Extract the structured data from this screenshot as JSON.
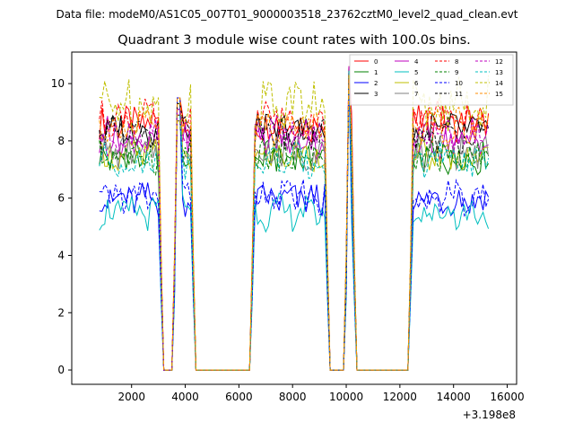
{
  "chart_data": {
    "type": "line",
    "suptitle": "Data file: modeM0/AS1C05_007T01_9000003518_23762cztM0_level2_quad_clean.evt",
    "title": "Quadrant 3 module wise count rates with 100.0s bins.",
    "xlabel": "",
    "ylabel": "",
    "x_offset_label": "+3.198e8",
    "xlim": [
      -230,
      16350
    ],
    "ylim": [
      -0.5,
      11.1
    ],
    "xticks": [
      2000,
      4000,
      6000,
      8000,
      10000,
      12000,
      14000,
      16000
    ],
    "xtick_labels": [
      "2000",
      "4000",
      "6000",
      "8000",
      "10000",
      "12000",
      "14000",
      "16000"
    ],
    "yticks": [
      0,
      2,
      4,
      6,
      8,
      10
    ],
    "ytick_labels": [
      "0",
      "2",
      "4",
      "6",
      "8",
      "10"
    ],
    "legend_position": "upper right",
    "legend_columns": 4,
    "bin_seconds": 100,
    "profile": {
      "segments": [
        {
          "x_start": 800,
          "x_end": 3000,
          "level": "high"
        },
        {
          "x_start": 3700,
          "x_end": 4200,
          "level": "high"
        },
        {
          "x_start": 6600,
          "x_end": 9200,
          "level": "high"
        },
        {
          "x_start": 10100,
          "x_end": 10200,
          "level": "high"
        },
        {
          "x_start": 12500,
          "x_end": 15300,
          "level": "high"
        }
      ],
      "zero_ranges": [
        [
          3200,
          3500
        ],
        [
          4400,
          6500
        ],
        [
          9400,
          9900
        ],
        [
          10400,
          12400
        ]
      ],
      "spike_time": 10100,
      "spike_level": 10.6,
      "gap_edge_level": 9.5
    },
    "series": [
      {
        "name": "0",
        "color": "#ff0000",
        "dash": "solid",
        "mean": 8.6
      },
      {
        "name": "1",
        "color": "#008000",
        "dash": "solid",
        "mean": 7.4
      },
      {
        "name": "2",
        "color": "#0000ff",
        "dash": "solid",
        "mean": 5.95
      },
      {
        "name": "3",
        "color": "#000000",
        "dash": "solid",
        "mean": 8.4
      },
      {
        "name": "4",
        "color": "#bf00bf",
        "dash": "solid",
        "mean": 8.0
      },
      {
        "name": "5",
        "color": "#00bfbf",
        "dash": "solid",
        "mean": 5.5
      },
      {
        "name": "6",
        "color": "#bfbf00",
        "dash": "solid",
        "mean": 7.5
      },
      {
        "name": "7",
        "color": "#808080",
        "dash": "solid",
        "mean": 7.6
      },
      {
        "name": "8",
        "color": "#ff0000",
        "dash": "dashed",
        "mean": 8.8
      },
      {
        "name": "9",
        "color": "#008000",
        "dash": "dashed",
        "mean": 7.5
      },
      {
        "name": "10",
        "color": "#0000ff",
        "dash": "dashed",
        "mean": 6.05
      },
      {
        "name": "11",
        "color": "#000000",
        "dash": "dashed",
        "mean": 8.2
      },
      {
        "name": "12",
        "color": "#bf00bf",
        "dash": "dashed",
        "mean": 8.2
      },
      {
        "name": "13",
        "color": "#00bfbf",
        "dash": "dashed",
        "mean": 7.3
      },
      {
        "name": "14",
        "color": "#bfbf00",
        "dash": "dashed",
        "mean": 9.3
      },
      {
        "name": "15",
        "color": "#ff8c00",
        "dash": "dashed",
        "mean": 8.5
      }
    ]
  }
}
